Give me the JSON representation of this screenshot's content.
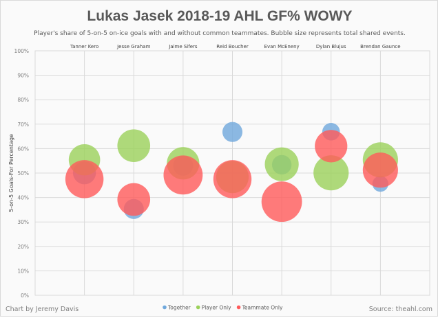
{
  "chart_data": {
    "type": "scatter",
    "subtype": "bubble",
    "title": "Lukas Jasek 2018-19 AHL GF% WOWY",
    "subtitle": "Player's share of 5-on-5 on-ice goals with and without common teammates. Bubble size represents total shared events.",
    "xlabel": "",
    "ylabel": "5-on-5 Goals-For Percentage",
    "ylim": [
      0,
      100
    ],
    "yticks": [
      "0%",
      "10%",
      "20%",
      "30%",
      "40%",
      "50%",
      "60%",
      "70%",
      "80%",
      "90%",
      "100%"
    ],
    "grid": true,
    "legend_position": "bottom",
    "categories": [
      "Tanner Kero",
      "Jesse Graham",
      "Jaime Sifers",
      "Reid Boucher",
      "Evan McEneny",
      "Dylan Blujus",
      "Brendan Gaunce"
    ],
    "series": [
      {
        "name": "Together",
        "color": "#6fa8dc",
        "values": [
          50.1,
          35.3,
          53.0,
          66.8,
          53.4,
          66.9,
          45.6
        ],
        "sizes": [
          29,
          22,
          22,
          22,
          21,
          17,
          14
        ]
      },
      {
        "name": "Player Only",
        "color": "#9bd15a",
        "values": [
          55.4,
          61.2,
          54.0,
          48.4,
          53.6,
          50.1,
          55.4
        ],
        "sizes": [
          54,
          59,
          58,
          58,
          63,
          68,
          68
        ]
      },
      {
        "name": "Teammate Only",
        "color": "#ff5a5a",
        "values": [
          47.5,
          39.2,
          49.2,
          47.5,
          38.3,
          61.0,
          51.2
        ],
        "sizes": [
          80,
          59,
          84,
          80,
          90,
          58,
          68
        ]
      }
    ]
  },
  "footer": {
    "credit": "Chart by Jeremy Davis",
    "source": "Source:  theahl.com"
  }
}
